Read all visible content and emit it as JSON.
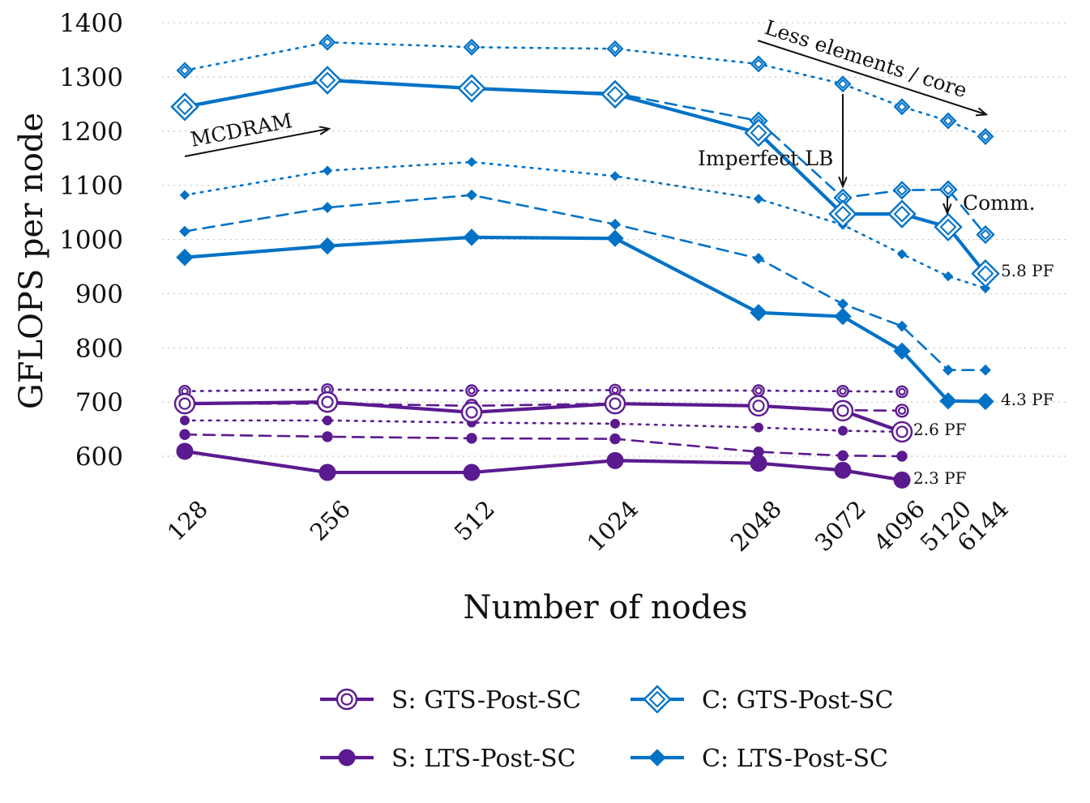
{
  "chart_data": {
    "type": "line",
    "ylabel": "GFLOPS per node",
    "xlabel": "Number of nodes",
    "ylim": [
      520,
      1400
    ],
    "yticks": [
      600,
      700,
      800,
      900,
      1000,
      1100,
      1200,
      1300,
      1400
    ],
    "x_tick_labels": [
      "128",
      "256",
      "512",
      "1024",
      "2048",
      "3072",
      "4096",
      "5120",
      "6144"
    ],
    "grid": "horizontal dotted",
    "colors": {
      "S": "#5b1a8f",
      "C": "#0072c6"
    },
    "series": [
      {
        "name": "S: GTS-Post-SC",
        "group": "S",
        "marker": "ring",
        "x": [
          "128",
          "256",
          "512",
          "1024",
          "2048",
          "3072",
          "4096"
        ],
        "solid": [
          697,
          700,
          681,
          697,
          693,
          684,
          645
        ],
        "dashed": [
          697,
          697,
          693,
          697,
          692,
          685,
          684
        ],
        "dotted": [
          720,
          723,
          721,
          722,
          721,
          720,
          719
        ]
      },
      {
        "name": "S: LTS-Post-SC",
        "group": "S",
        "marker": "dot",
        "x": [
          "128",
          "256",
          "512",
          "1024",
          "2048",
          "3072",
          "4096"
        ],
        "solid": [
          609,
          570,
          570,
          592,
          587,
          574,
          556
        ],
        "dashed": [
          640,
          636,
          633,
          632,
          608,
          601,
          600
        ],
        "dotted": [
          666,
          666,
          662,
          660,
          653,
          647,
          645
        ]
      },
      {
        "name": "C: GTS-Post-SC",
        "group": "C",
        "marker": "diamond-open",
        "x": [
          "128",
          "256",
          "512",
          "1024",
          "2048",
          "3072",
          "4096",
          "5120",
          "6144"
        ],
        "solid": [
          1245,
          1294,
          1279,
          1268,
          1197,
          1047,
          1047,
          1023,
          937
        ],
        "dashed": [
          1243,
          1296,
          1279,
          1270,
          1219,
          1077,
          1091,
          1092,
          1009
        ],
        "dotted": [
          1312,
          1364,
          1355,
          1352,
          1324,
          1287,
          1245,
          1219,
          1190
        ]
      },
      {
        "name": "C: LTS-Post-SC",
        "group": "C",
        "marker": "diamond-filled",
        "x": [
          "128",
          "256",
          "512",
          "1024",
          "2048",
          "3072",
          "4096",
          "5120",
          "6144"
        ],
        "solid": [
          967,
          988,
          1004,
          1002,
          865,
          858,
          794,
          702,
          701
        ],
        "dashed": [
          1015,
          1059,
          1082,
          1028,
          965,
          881,
          840,
          759,
          759
        ],
        "dotted": [
          1082,
          1127,
          1143,
          1117,
          1075,
          1027,
          973,
          932,
          910
        ]
      }
    ],
    "annotations": {
      "mcdram": "MCDRAM",
      "less_elements": "Less elements / core",
      "imperfect_lb": "Imperfect LB",
      "comm": "Comm.",
      "pf_58": "5.8 PF",
      "pf_43": "4.3 PF",
      "pf_26": "2.6 PF",
      "pf_23": "2.3 PF"
    },
    "legend": {
      "placement": "bottom",
      "items": [
        "S: GTS-Post-SC",
        "C: GTS-Post-SC",
        "S: LTS-Post-SC",
        "C: LTS-Post-SC"
      ]
    }
  }
}
